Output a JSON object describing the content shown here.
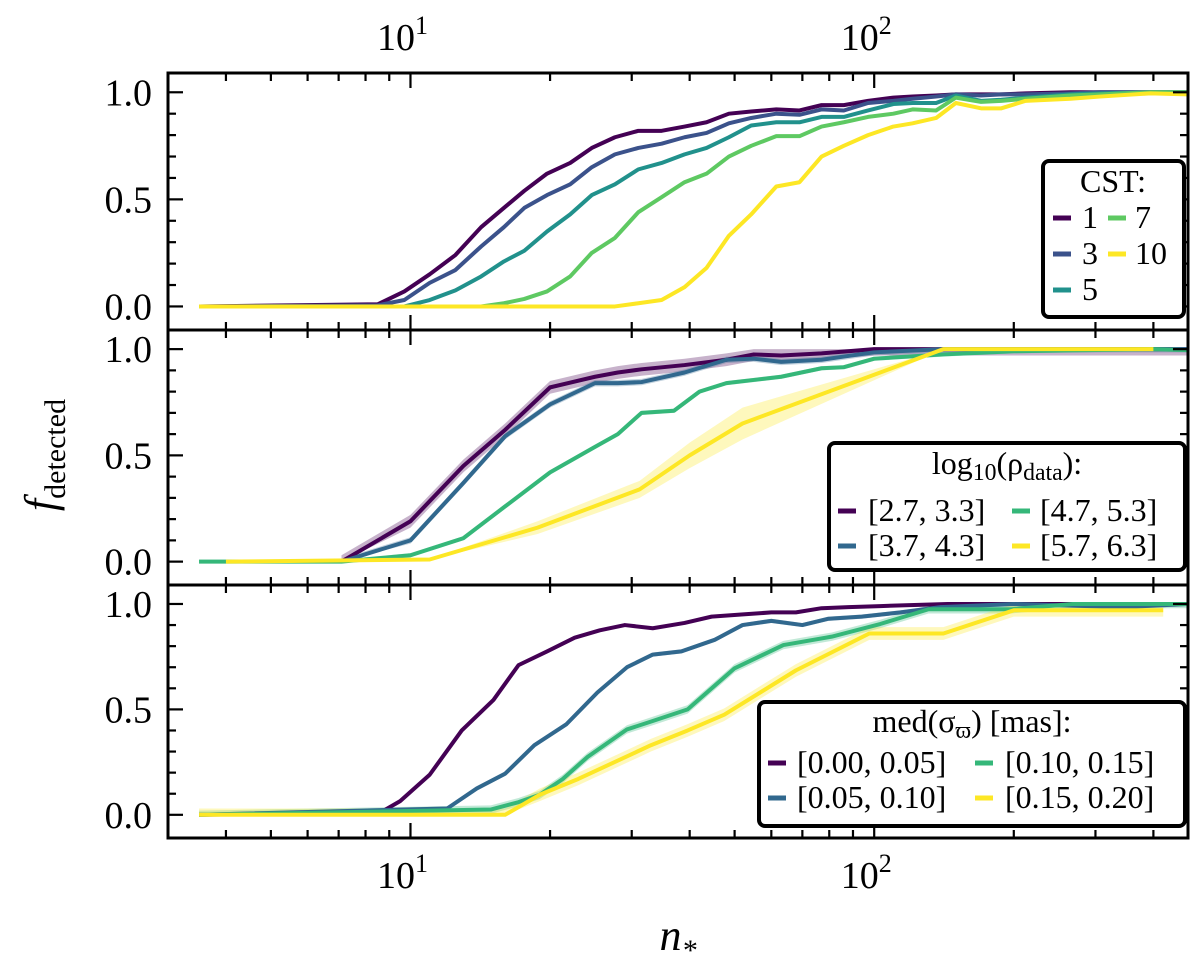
{
  "chart_data": {
    "type": "line",
    "layout": "three vertically stacked panels sharing a logarithmic x axis",
    "xlabel": {
      "base": "n",
      "sub": "*"
    },
    "ylabel": {
      "base": "f",
      "sub": "detected"
    },
    "xscale": "log",
    "xlim": [
      3,
      475
    ],
    "x_ticks": [
      {
        "base": "10",
        "exp": "1",
        "value": 10
      },
      {
        "base": "10",
        "exp": "2",
        "value": 100
      }
    ],
    "x_tick_labels_on": [
      "top",
      "bottom"
    ],
    "grid": false,
    "panels": [
      {
        "ylim": [
          -0.11,
          1.09
        ],
        "y_ticks": [
          "0.0",
          "0.5",
          "1.0"
        ],
        "legend": {
          "placement": "right",
          "title": [
            {
              "t": "CST:",
              "sub": false
            }
          ],
          "columns": 2
        },
        "series": [
          {
            "name": "1",
            "color": "#440154",
            "x": [
              3.5,
              8.5,
              9.7,
              11,
              12.5,
              14.2,
              15.9,
              17.6,
              19.7,
              22.1,
              24.6,
              27.6,
              31,
              34.8,
              39,
              43.5,
              48.6,
              54.3,
              61.5,
              69,
              77,
              86,
              97,
              110,
              121,
              136,
              150,
              170,
              188,
              212,
              265,
              307,
              394,
              475
            ],
            "y": [
              0,
              0.01,
              0.07,
              0.15,
              0.24,
              0.37,
              0.46,
              0.54,
              0.62,
              0.67,
              0.74,
              0.79,
              0.82,
              0.82,
              0.84,
              0.86,
              0.9,
              0.91,
              0.92,
              0.915,
              0.94,
              0.94,
              0.96,
              0.975,
              0.98,
              0.985,
              0.99,
              0.99,
              0.99,
              0.995,
              1,
              1,
              1,
              1
            ]
          },
          {
            "name": "3",
            "color": "#3b528b",
            "x": [
              3.5,
              8.5,
              9.7,
              11,
              12.5,
              14.2,
              15.9,
              17.6,
              19.7,
              22.1,
              24.6,
              27.6,
              31,
              34.8,
              39,
              43.5,
              48.6,
              54.3,
              61.5,
              69,
              77,
              86,
              97,
              110,
              121,
              136,
              150,
              170,
              188,
              212,
              265,
              307,
              394,
              475
            ],
            "y": [
              0,
              0.005,
              0.03,
              0.11,
              0.17,
              0.28,
              0.37,
              0.46,
              0.52,
              0.57,
              0.65,
              0.71,
              0.74,
              0.76,
              0.79,
              0.81,
              0.855,
              0.88,
              0.9,
              0.895,
              0.92,
              0.915,
              0.95,
              0.96,
              0.97,
              0.98,
              0.99,
              0.985,
              0.99,
              0.99,
              0.995,
              1,
              1,
              1
            ]
          },
          {
            "name": "5",
            "color": "#21918c",
            "x": [
              3.5,
              8.5,
              9.7,
              11,
              12.5,
              14.2,
              15.9,
              17.6,
              19.7,
              22.1,
              24.6,
              27.6,
              31,
              34.8,
              39,
              43.5,
              48.6,
              54.3,
              61.5,
              69,
              77,
              86,
              97,
              110,
              121,
              136,
              150,
              170,
              188,
              212,
              265,
              307,
              394,
              475
            ],
            "y": [
              0,
              0,
              0,
              0.03,
              0.075,
              0.14,
              0.21,
              0.26,
              0.35,
              0.43,
              0.52,
              0.57,
              0.64,
              0.67,
              0.71,
              0.74,
              0.79,
              0.845,
              0.86,
              0.86,
              0.885,
              0.885,
              0.915,
              0.945,
              0.95,
              0.95,
              0.985,
              0.96,
              0.965,
              0.975,
              0.99,
              0.995,
              1,
              1
            ]
          },
          {
            "name": "7",
            "color": "#5ec962",
            "x": [
              3.5,
              8.5,
              9.7,
              11,
              12.5,
              14.2,
              15.9,
              17.6,
              19.7,
              22.1,
              24.6,
              27.6,
              31,
              34.8,
              39,
              43.5,
              48.6,
              54.3,
              61.5,
              69,
              77,
              86,
              97,
              110,
              121,
              136,
              150,
              170,
              188,
              212,
              265,
              307,
              394,
              475
            ],
            "y": [
              0,
              0,
              0,
              0,
              0,
              0,
              0.015,
              0.035,
              0.07,
              0.14,
              0.25,
              0.32,
              0.44,
              0.51,
              0.58,
              0.62,
              0.7,
              0.75,
              0.795,
              0.795,
              0.84,
              0.86,
              0.885,
              0.9,
              0.92,
              0.915,
              0.975,
              0.955,
              0.96,
              0.97,
              0.985,
              0.99,
              1,
              1
            ]
          },
          {
            "name": "10",
            "color": "#fde725",
            "x": [
              3.5,
              8.5,
              9.7,
              11,
              12.5,
              14.2,
              15.9,
              17.6,
              19.7,
              22.1,
              24.6,
              27.6,
              31,
              34.8,
              39,
              43.5,
              48.6,
              54.3,
              61.5,
              69,
              77,
              86,
              97,
              110,
              121,
              136,
              150,
              170,
              188,
              212,
              265,
              307,
              394,
              475
            ],
            "y": [
              0,
              0,
              0,
              0,
              0,
              0,
              0,
              0,
              0,
              0,
              0,
              0,
              0.015,
              0.03,
              0.09,
              0.18,
              0.33,
              0.43,
              0.56,
              0.58,
              0.7,
              0.75,
              0.8,
              0.84,
              0.855,
              0.88,
              0.95,
              0.925,
              0.925,
              0.96,
              0.97,
              0.98,
              0.995,
              0.99
            ]
          }
        ]
      },
      {
        "ylim": [
          -0.11,
          1.09
        ],
        "y_ticks": [
          "0.0",
          "0.5",
          "1.0"
        ],
        "legend": {
          "placement": "right",
          "title": [
            {
              "t": "log",
              "sub": false
            },
            {
              "t": "10",
              "sub": true
            },
            {
              "t": "(ρ",
              "sub": false
            },
            {
              "t": "data",
              "sub": true
            },
            {
              "t": "):",
              "sub": false
            }
          ],
          "columns": 2
        },
        "series": [
          {
            "name": "[2.7, 3.3]",
            "color": "#440154",
            "band": 0.03,
            "x": [
              7.1,
              10,
              13,
              16,
              20,
              25,
              28,
              31.5,
              39,
              48,
              55,
              63,
              77,
              100,
              141,
              200,
              400,
              475
            ],
            "y": [
              0,
              0.19,
              0.45,
              0.62,
              0.82,
              0.87,
              0.89,
              0.905,
              0.925,
              0.95,
              0.975,
              0.97,
              0.98,
              1,
              1,
              1,
              1,
              1
            ]
          },
          {
            "name": "[3.7, 4.3]",
            "color": "#31688e",
            "band": 0.015,
            "x": [
              7.1,
              10,
              13,
              16,
              20,
              25,
              28,
              31.5,
              39,
              48,
              55,
              63,
              77,
              86,
              100,
              141,
              200,
              400,
              475
            ],
            "y": [
              0,
              0.1,
              0.37,
              0.59,
              0.74,
              0.84,
              0.84,
              0.845,
              0.89,
              0.95,
              0.955,
              0.94,
              0.95,
              0.965,
              0.985,
              1,
              1,
              1,
              1
            ]
          },
          {
            "name": "[4.7, 5.3]",
            "color": "#35b779",
            "band": 0.01,
            "x": [
              3.5,
              7.1,
              10,
              13,
              16,
              20,
              25,
              28,
              31.5,
              37,
              42,
              48,
              55,
              63,
              77,
              86,
              100,
              141,
              200,
              400,
              475
            ],
            "y": [
              0,
              0,
              0.03,
              0.11,
              0.26,
              0.42,
              0.54,
              0.6,
              0.7,
              0.71,
              0.8,
              0.84,
              0.855,
              0.87,
              0.91,
              0.915,
              0.955,
              0.975,
              0.99,
              1,
              0.995
            ]
          },
          {
            "name": "[5.7, 6.3]",
            "color": "#fde725",
            "x": [
              4,
              11,
              18.8,
              31.2,
              40,
              52,
              141,
              200,
              400
            ],
            "y": [
              0,
              0.01,
              0.16,
              0.34,
              0.5,
              0.65,
              1,
              1,
              1
            ],
            "band_width": [
              0,
              0,
              0.03,
              0.04,
              0.06,
              0.075,
              0,
              0,
              0
            ]
          }
        ]
      },
      {
        "ylim": [
          -0.11,
          1.09
        ],
        "y_ticks": [
          "0.0",
          "0.5",
          "1.0"
        ],
        "legend": {
          "placement": "right",
          "title": [
            {
              "t": "med(σ",
              "sub": false
            },
            {
              "t": "ϖ",
              "sub": true
            },
            {
              "t": ") [mas]:",
              "sub": false
            }
          ],
          "columns": 2
        },
        "series": [
          {
            "name": "[0.00, 0.05]",
            "color": "#440154",
            "x": [
              3.5,
              8.6,
              9.5,
              11,
              12.9,
              15.1,
              17.1,
              19.7,
              22.6,
              25.6,
              29,
              33.3,
              39,
              44.6,
              51.7,
              60,
              67.8,
              77,
              88,
              103,
              144,
              475
            ],
            "y": [
              0,
              0.01,
              0.065,
              0.19,
              0.4,
              0.545,
              0.71,
              0.775,
              0.84,
              0.875,
              0.9,
              0.885,
              0.91,
              0.94,
              0.95,
              0.96,
              0.96,
              0.98,
              0.985,
              0.99,
              1,
              1
            ]
          },
          {
            "name": "[0.05, 0.10]",
            "color": "#31688e",
            "band": 0.01,
            "x": [
              3.5,
              12,
              13.9,
              16,
              18.5,
              21.7,
              25.3,
              29.3,
              33.3,
              38.4,
              45.3,
              52,
              60,
              70,
              79.7,
              94,
              114,
              139,
              200,
              345,
              475
            ],
            "y": [
              0,
              0.03,
              0.125,
              0.195,
              0.33,
              0.43,
              0.58,
              0.7,
              0.76,
              0.775,
              0.83,
              0.9,
              0.92,
              0.9,
              0.93,
              0.94,
              0.96,
              0.985,
              1,
              0.985,
              1
            ]
          },
          {
            "name": "[0.10, 0.15]",
            "color": "#35b779",
            "band": 0.02,
            "x": [
              3.5,
              14.9,
              17.1,
              19,
              21.3,
              24.1,
              29.3,
              33.3,
              39.6,
              50,
              63.7,
              81,
              103,
              131,
              197,
              268,
              475
            ],
            "y": [
              0,
              0.025,
              0.06,
              0.095,
              0.17,
              0.275,
              0.405,
              0.445,
              0.5,
              0.695,
              0.805,
              0.845,
              0.905,
              0.975,
              0.975,
              1,
              1
            ]
          },
          {
            "name": "[0.15, 0.20]",
            "color": "#fde725",
            "band": 0.03,
            "x": [
              3.5,
              16,
              19,
              23,
              33,
              39.6,
              47.5,
              67.8,
              97.6,
              141,
              200,
              420
            ],
            "y": [
              0,
              0,
              0.095,
              0.17,
              0.33,
              0.4,
              0.475,
              0.685,
              0.86,
              0.86,
              0.97,
              0.97
            ]
          }
        ]
      }
    ]
  }
}
